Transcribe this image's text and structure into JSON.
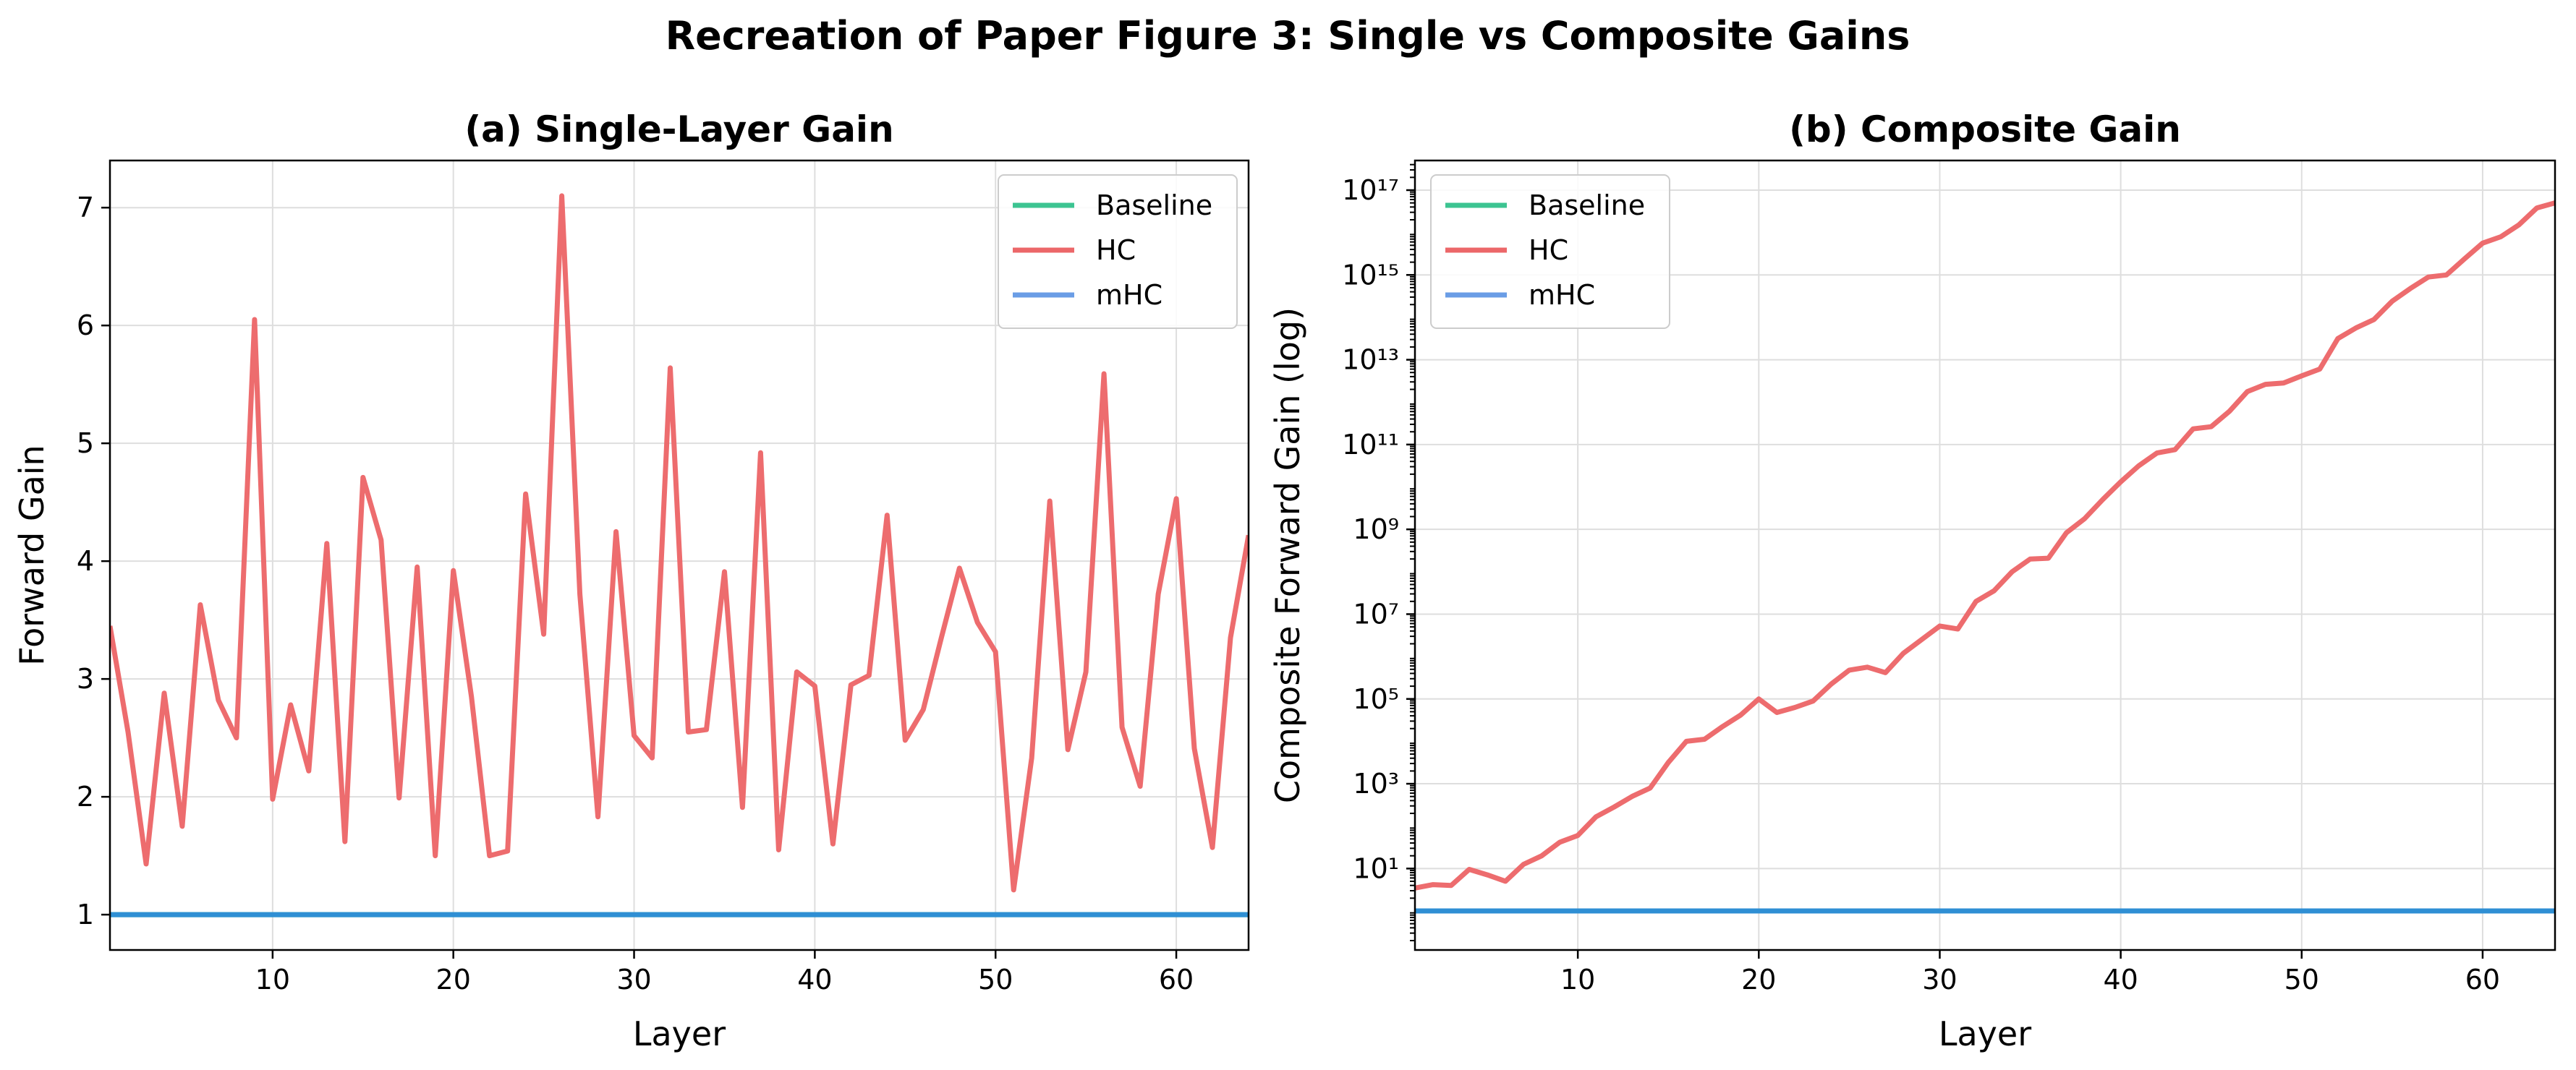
{
  "suptitle": "Recreation of Paper Figure 3: Single vs Composite Gains",
  "colors": {
    "baseline": "#3cc491",
    "hc": "#ec6769",
    "mhc": "#6a9de6",
    "overlap": "#2f8fd4",
    "grid": "#dedede",
    "axis": "#000000"
  },
  "chart_data": [
    {
      "type": "line",
      "title": "(a) Single-Layer Gain",
      "xlabel": "Layer",
      "ylabel": "Forward Gain",
      "xlim": [
        1,
        64
      ],
      "ylim": [
        0.7,
        7.4
      ],
      "xticks": [
        10,
        20,
        30,
        40,
        50,
        60
      ],
      "yticks": [
        1,
        2,
        3,
        4,
        5,
        6,
        7
      ],
      "yscale": "linear",
      "grid": true,
      "legend_position": "top-right",
      "x": [
        1,
        2,
        3,
        4,
        5,
        6,
        7,
        8,
        9,
        10,
        11,
        12,
        13,
        14,
        15,
        16,
        17,
        18,
        19,
        20,
        21,
        22,
        23,
        24,
        25,
        26,
        27,
        28,
        29,
        30,
        31,
        32,
        33,
        34,
        35,
        36,
        37,
        38,
        39,
        40,
        41,
        42,
        43,
        44,
        45,
        46,
        47,
        48,
        49,
        50,
        51,
        52,
        53,
        54,
        55,
        56,
        57,
        58,
        59,
        60,
        61,
        62,
        63,
        64
      ],
      "series": [
        {
          "name": "Baseline",
          "key": "baseline",
          "values": [
            1,
            1,
            1,
            1,
            1,
            1,
            1,
            1,
            1,
            1,
            1,
            1,
            1,
            1,
            1,
            1,
            1,
            1,
            1,
            1,
            1,
            1,
            1,
            1,
            1,
            1,
            1,
            1,
            1,
            1,
            1,
            1,
            1,
            1,
            1,
            1,
            1,
            1,
            1,
            1,
            1,
            1,
            1,
            1,
            1,
            1,
            1,
            1,
            1,
            1,
            1,
            1,
            1,
            1,
            1,
            1,
            1,
            1,
            1,
            1,
            1,
            1,
            1,
            1
          ]
        },
        {
          "name": "HC",
          "key": "hc",
          "values": [
            3.45,
            2.55,
            1.43,
            2.88,
            1.75,
            3.63,
            2.82,
            2.5,
            6.05,
            1.98,
            2.78,
            2.22,
            4.15,
            1.62,
            4.71,
            4.18,
            1.99,
            3.95,
            1.5,
            3.92,
            2.85,
            1.5,
            1.54,
            4.57,
            3.38,
            7.1,
            3.72,
            1.83,
            4.25,
            2.52,
            2.33,
            5.64,
            2.55,
            2.57,
            3.91,
            1.91,
            4.92,
            1.55,
            3.06,
            2.94,
            1.6,
            2.95,
            3.03,
            4.39,
            2.48,
            2.74,
            3.35,
            3.94,
            3.48,
            3.23,
            1.21,
            2.33,
            4.51,
            2.4,
            3.06,
            5.59,
            2.59,
            2.09,
            3.72,
            4.53,
            2.41,
            1.57,
            3.35,
            4.22
          ]
        },
        {
          "name": "mHC",
          "key": "mhc",
          "values": [
            1,
            1,
            1,
            1,
            1,
            1,
            1,
            1,
            1,
            1,
            1,
            1,
            1,
            1,
            1,
            1,
            1,
            1,
            1,
            1,
            1,
            1,
            1,
            1,
            1,
            1,
            1,
            1,
            1,
            1,
            1,
            1,
            1,
            1,
            1,
            1,
            1,
            1,
            1,
            1,
            1,
            1,
            1,
            1,
            1,
            1,
            1,
            1,
            1,
            1,
            1,
            1,
            1,
            1,
            1,
            1,
            1,
            1,
            1,
            1,
            1,
            1,
            1,
            1
          ]
        }
      ]
    },
    {
      "type": "line",
      "title": "(b) Composite Gain",
      "xlabel": "Layer",
      "ylabel": "Composite Forward Gain (log)",
      "xlim": [
        1,
        64
      ],
      "ylim": [
        0.12,
        5e+17
      ],
      "xticks": [
        10,
        20,
        30,
        40,
        50,
        60
      ],
      "yticks": [
        1,
        3,
        5,
        7,
        9,
        11,
        13,
        15,
        17
      ],
      "ytick_labels": [
        "10¹",
        "10³",
        "10⁵",
        "10⁷",
        "10⁹",
        "10¹¹",
        "10¹³",
        "10¹⁵",
        "10¹⁷"
      ],
      "yscale": "log",
      "grid": true,
      "legend_position": "top-left",
      "x": [
        1,
        2,
        3,
        4,
        5,
        6,
        7,
        8,
        9,
        10,
        11,
        12,
        13,
        14,
        15,
        16,
        17,
        18,
        19,
        20,
        21,
        22,
        23,
        24,
        25,
        26,
        27,
        28,
        29,
        30,
        31,
        32,
        33,
        34,
        35,
        36,
        37,
        38,
        39,
        40,
        41,
        42,
        43,
        44,
        45,
        46,
        47,
        48,
        49,
        50,
        51,
        52,
        53,
        54,
        55,
        56,
        57,
        58,
        59,
        60,
        61,
        62,
        63,
        64
      ],
      "series": [
        {
          "name": "Baseline",
          "key": "baseline",
          "log10_values": [
            0,
            0,
            0,
            0,
            0,
            0,
            0,
            0,
            0,
            0,
            0,
            0,
            0,
            0,
            0,
            0,
            0,
            0,
            0,
            0,
            0,
            0,
            0,
            0,
            0,
            0,
            0,
            0,
            0,
            0,
            0,
            0,
            0,
            0,
            0,
            0,
            0,
            0,
            0,
            0,
            0,
            0,
            0,
            0,
            0,
            0,
            0,
            0,
            0,
            0,
            0,
            0,
            0,
            0,
            0,
            0,
            0,
            0,
            0,
            0,
            0,
            0,
            0,
            0
          ]
        },
        {
          "name": "HC",
          "key": "hc",
          "log10_values": [
            0.54,
            0.62,
            0.6,
            0.98,
            0.85,
            0.7,
            1.1,
            1.3,
            1.62,
            1.78,
            2.22,
            2.45,
            2.7,
            2.9,
            3.5,
            4.0,
            4.05,
            4.35,
            4.62,
            5.0,
            4.68,
            4.8,
            4.95,
            5.35,
            5.68,
            5.75,
            5.62,
            6.08,
            6.4,
            6.72,
            6.65,
            7.3,
            7.55,
            8.0,
            8.3,
            8.32,
            8.92,
            9.25,
            9.7,
            10.12,
            10.5,
            10.8,
            10.88,
            11.37,
            11.42,
            11.78,
            12.25,
            12.42,
            12.45,
            12.62,
            12.78,
            13.5,
            13.75,
            13.95,
            14.38,
            14.68,
            14.95,
            15.0,
            15.38,
            15.75,
            15.9,
            16.18,
            16.58,
            16.7
          ]
        },
        {
          "name": "mHC",
          "key": "mhc",
          "log10_values": [
            0,
            0,
            0,
            0,
            0,
            0,
            0,
            0,
            0,
            0,
            0,
            0,
            0,
            0,
            0,
            0,
            0,
            0,
            0,
            0,
            0,
            0,
            0,
            0,
            0,
            0,
            0,
            0,
            0,
            0,
            0,
            0,
            0,
            0,
            0,
            0,
            0,
            0,
            0,
            0,
            0,
            0,
            0,
            0,
            0,
            0,
            0,
            0,
            0,
            0,
            0,
            0,
            0,
            0,
            0,
            0,
            0,
            0,
            0,
            0,
            0,
            0,
            0,
            0
          ]
        }
      ]
    }
  ]
}
